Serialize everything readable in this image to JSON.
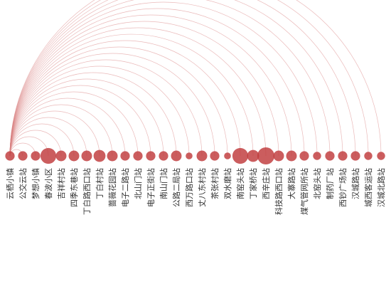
{
  "chart_data": {
    "type": "arc-diagram",
    "title": "",
    "grid": false,
    "legend": "none",
    "colors": {
      "node": "#c0393b",
      "link": "#d98080"
    },
    "source_node": "云栖小镇",
    "nodes": [
      {
        "name": "云栖小镇",
        "value": 4
      },
      {
        "name": "公交云站",
        "value": 4
      },
      {
        "name": "梦想小镇",
        "value": 4
      },
      {
        "name": "春波小区",
        "value": 9
      },
      {
        "name": "吉祥村站",
        "value": 5
      },
      {
        "name": "四季东巷站",
        "value": 5
      },
      {
        "name": "丁白路西口站",
        "value": 5
      },
      {
        "name": "丁白村站",
        "value": 6
      },
      {
        "name": "蔷薇花园站",
        "value": 5
      },
      {
        "name": "电子二路站",
        "value": 4
      },
      {
        "name": "北山门站",
        "value": 4
      },
      {
        "name": "电子正街站",
        "value": 4
      },
      {
        "name": "南山门站",
        "value": 4
      },
      {
        "name": "公路二局站",
        "value": 5
      },
      {
        "name": "西万路口站",
        "value": 2
      },
      {
        "name": "丈八东村站",
        "value": 5
      },
      {
        "name": "茶张村站",
        "value": 4
      },
      {
        "name": "双水磨站",
        "value": 2
      },
      {
        "name": "南窑头站",
        "value": 9
      },
      {
        "name": "丁家桥站",
        "value": 6
      },
      {
        "name": "西辛庄站",
        "value": 10
      },
      {
        "name": "科技路西口站",
        "value": 5
      },
      {
        "name": "大寨路站",
        "value": 5
      },
      {
        "name": "煤气管网所站",
        "value": 4
      },
      {
        "name": "北窑头站",
        "value": 3
      },
      {
        "name": "制药厂站",
        "value": 4
      },
      {
        "name": "西钞广场站",
        "value": 4
      },
      {
        "name": "汉城路站",
        "value": 4
      },
      {
        "name": "城西客运站",
        "value": 3
      },
      {
        "name": "汉城北路站",
        "value": 3
      }
    ]
  }
}
